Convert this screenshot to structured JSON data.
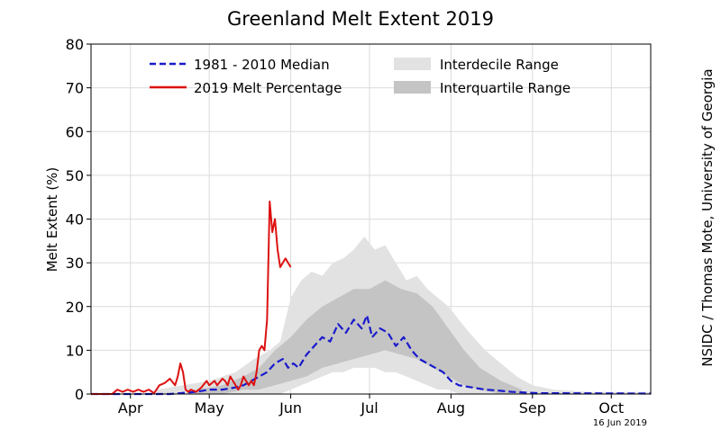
{
  "chart_data": {
    "type": "line",
    "title": "Greenland Melt Extent 2019",
    "ylabel": "Melt Extent (%)",
    "xlabel": "",
    "ylim": [
      0,
      80
    ],
    "yticks": [
      0,
      10,
      20,
      30,
      40,
      50,
      60,
      70,
      80
    ],
    "xlim_day": [
      0,
      213
    ],
    "month_ticks": [
      {
        "label": "Apr",
        "day": 15
      },
      {
        "label": "May",
        "day": 45
      },
      {
        "label": "Jun",
        "day": 76
      },
      {
        "label": "Jul",
        "day": 106
      },
      {
        "label": "Aug",
        "day": 137
      },
      {
        "label": "Sep",
        "day": 168
      },
      {
        "label": "Oct",
        "day": 198
      }
    ],
    "grid": true,
    "legend": {
      "position": "top",
      "median_label": "1981 - 2010 Median",
      "melt_label": "2019 Melt Percentage",
      "interdecile_label": "Interdecile Range",
      "interquartile_label": "Interquartile Range"
    },
    "credit": "NSIDC / Thomas Mote, University of Georgia",
    "date_stamp": "16 Jun 2019",
    "colors": {
      "median": "#1a1acc",
      "melt": "#dd1111",
      "interdecile": "#e2e2e2",
      "interquartile": "#c4c4c4",
      "grid": "#dcdcdc"
    },
    "interdecile": {
      "x": [
        25,
        35,
        45,
        55,
        62,
        68,
        72,
        76,
        80,
        84,
        88,
        92,
        96,
        100,
        104,
        108,
        112,
        116,
        120,
        124,
        128,
        132,
        136,
        140,
        144,
        150,
        156,
        162,
        168,
        176,
        190,
        213
      ],
      "lower": [
        0,
        0,
        0,
        0,
        0,
        0,
        0,
        1,
        2,
        3,
        4,
        5,
        5,
        6,
        6,
        6,
        5,
        5,
        4,
        3,
        2,
        1,
        1,
        0,
        0,
        0,
        0,
        0,
        0,
        0,
        0,
        0
      ],
      "upper": [
        1,
        2,
        3,
        5,
        8,
        10,
        12,
        22,
        26,
        28,
        27,
        30,
        31,
        33,
        36,
        33,
        34,
        30,
        26,
        27,
        24,
        22,
        20,
        17,
        14,
        10,
        7,
        4,
        2,
        1,
        0.5,
        0.5
      ]
    },
    "interquartile": {
      "x": [
        40,
        50,
        58,
        64,
        70,
        76,
        82,
        88,
        94,
        100,
        106,
        112,
        118,
        124,
        130,
        136,
        142,
        148,
        156,
        164
      ],
      "lower": [
        0,
        0,
        1,
        1,
        2,
        3,
        4,
        6,
        7,
        8,
        9,
        10,
        9,
        8,
        6,
        4,
        2,
        1,
        0,
        0
      ],
      "upper": [
        1,
        2,
        4,
        6,
        10,
        13,
        17,
        20,
        22,
        24,
        24,
        26,
        24,
        23,
        20,
        15,
        10,
        6,
        3,
        1
      ]
    },
    "series": [
      {
        "name": "1981 - 2010 Median",
        "x": [
          0,
          30,
          40,
          45,
          50,
          55,
          58,
          61,
          64,
          67,
          70,
          73,
          75,
          77,
          79,
          82,
          85,
          88,
          91,
          94,
          97,
          100,
          103,
          105,
          107,
          110,
          113,
          116,
          119,
          122,
          125,
          128,
          131,
          134,
          137,
          140,
          145,
          150,
          155,
          160,
          170,
          213
        ],
        "values": [
          0,
          0,
          0.5,
          1,
          1,
          1.5,
          2,
          3,
          4,
          5,
          7,
          8,
          6,
          7,
          6,
          9,
          11,
          13,
          12,
          16,
          14,
          17,
          15,
          18,
          13,
          15,
          14,
          11,
          13,
          10,
          8,
          7,
          6,
          5,
          3,
          2,
          1.5,
          1,
          0.8,
          0.5,
          0.2,
          0.1
        ]
      },
      {
        "name": "2019 Melt Percentage",
        "x": [
          0,
          8,
          10,
          12,
          14,
          16,
          18,
          20,
          22,
          24,
          26,
          28,
          30,
          32,
          33,
          34,
          35,
          36,
          37,
          38,
          40,
          42,
          44,
          45,
          46,
          47,
          48,
          50,
          51,
          52,
          53,
          54,
          55,
          56,
          57,
          58,
          59,
          60,
          61,
          62,
          63,
          64,
          65,
          66,
          67,
          68,
          69,
          70,
          71,
          72,
          73,
          74,
          75,
          76
        ],
        "values": [
          0,
          0,
          1,
          0.5,
          1,
          0.5,
          1,
          0.5,
          1,
          0.2,
          2,
          2.5,
          3.5,
          2,
          4,
          7,
          5,
          1,
          0.5,
          1,
          0.5,
          1.5,
          3,
          2,
          2.5,
          3,
          2,
          3.5,
          3,
          2,
          4,
          3,
          2,
          1,
          2,
          4,
          3,
          2,
          3,
          2,
          5,
          10,
          11,
          10,
          17,
          44,
          37,
          40,
          33,
          29,
          30,
          31,
          30,
          29
        ]
      }
    ]
  }
}
